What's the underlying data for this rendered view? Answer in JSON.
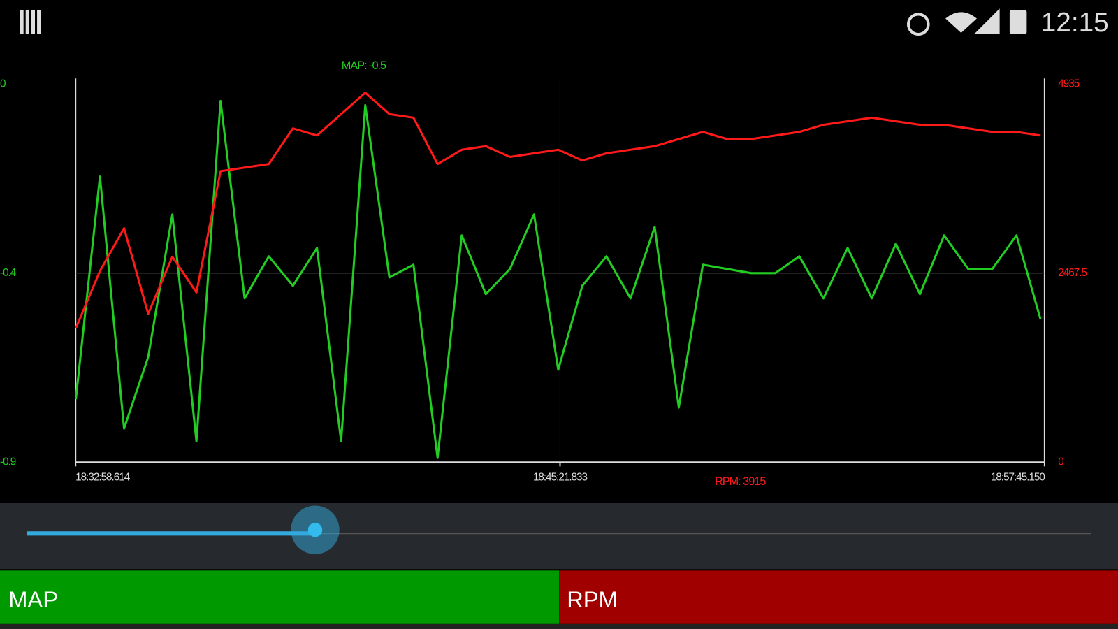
{
  "status_bar": {
    "time": "12:15"
  },
  "chart_data": {
    "type": "line",
    "x": [
      66779,
      66816,
      66853,
      66890,
      66927,
      66964,
      67001,
      67038,
      67075,
      67112,
      67149,
      67186,
      67223,
      67260,
      67297,
      67334,
      67371,
      67408,
      67445,
      67482,
      67519,
      67556,
      67593,
      67630,
      67667,
      67704,
      67741,
      67778,
      67815,
      67852,
      67889,
      67926,
      67963,
      68000,
      68037,
      68074,
      68111,
      68148,
      68185,
      68222,
      68259
    ],
    "xlim": [
      66778.614,
      68265.15
    ],
    "xticks": [
      {
        "value": 66778.614,
        "label": "18:32:58.614"
      },
      {
        "value": 67521.833,
        "label": "18:45:21.833"
      },
      {
        "value": 68265.15,
        "label": "18:57:45.150"
      }
    ],
    "ylim": [
      -0.9,
      0
    ],
    "yticks": [
      {
        "value": -0.9,
        "label": "-0.9"
      },
      {
        "value": -0.45,
        "label": "-0.4"
      },
      0
    ],
    "y2lim": [
      0,
      4935
    ],
    "y2ticks": [
      0,
      2467.5,
      4935
    ],
    "grid": true,
    "series": [
      {
        "name": "MAP",
        "color": "#22cc22",
        "values": [
          -0.75,
          -0.22,
          -0.82,
          -0.65,
          -0.31,
          -0.85,
          -0.04,
          -0.51,
          -0.41,
          -0.48,
          -0.39,
          -0.85,
          -0.05,
          -0.46,
          -0.43,
          -0.89,
          -0.36,
          -0.5,
          -0.44,
          -0.31,
          -0.68,
          -0.48,
          -0.41,
          -0.51,
          -0.34,
          -0.77,
          -0.43,
          -0.44,
          -0.45,
          -0.45,
          -0.41,
          -0.51,
          -0.39,
          -0.51,
          -0.38,
          -0.5,
          -0.36,
          -0.44,
          -0.44,
          -0.36,
          -0.56
        ]
      },
      {
        "name": "RPM",
        "color": "#ff1a1a",
        "axis": "y2",
        "values": [
          1750,
          2495,
          3054,
          1937,
          2682,
          2216,
          3799,
          3846,
          3892,
          4358,
          4265,
          4544,
          4823,
          4544,
          4497,
          3892,
          4078,
          4125,
          3985,
          4032,
          4078,
          3939,
          4032,
          4078,
          4125,
          4218,
          4311,
          4218,
          4218,
          4265,
          4311,
          4404,
          4451,
          4497,
          4451,
          4404,
          4404,
          4358,
          4311,
          4311,
          4265
        ]
      }
    ],
    "annotations": [
      "MAP: -0.5",
      "RPM: 3915"
    ]
  }
}
